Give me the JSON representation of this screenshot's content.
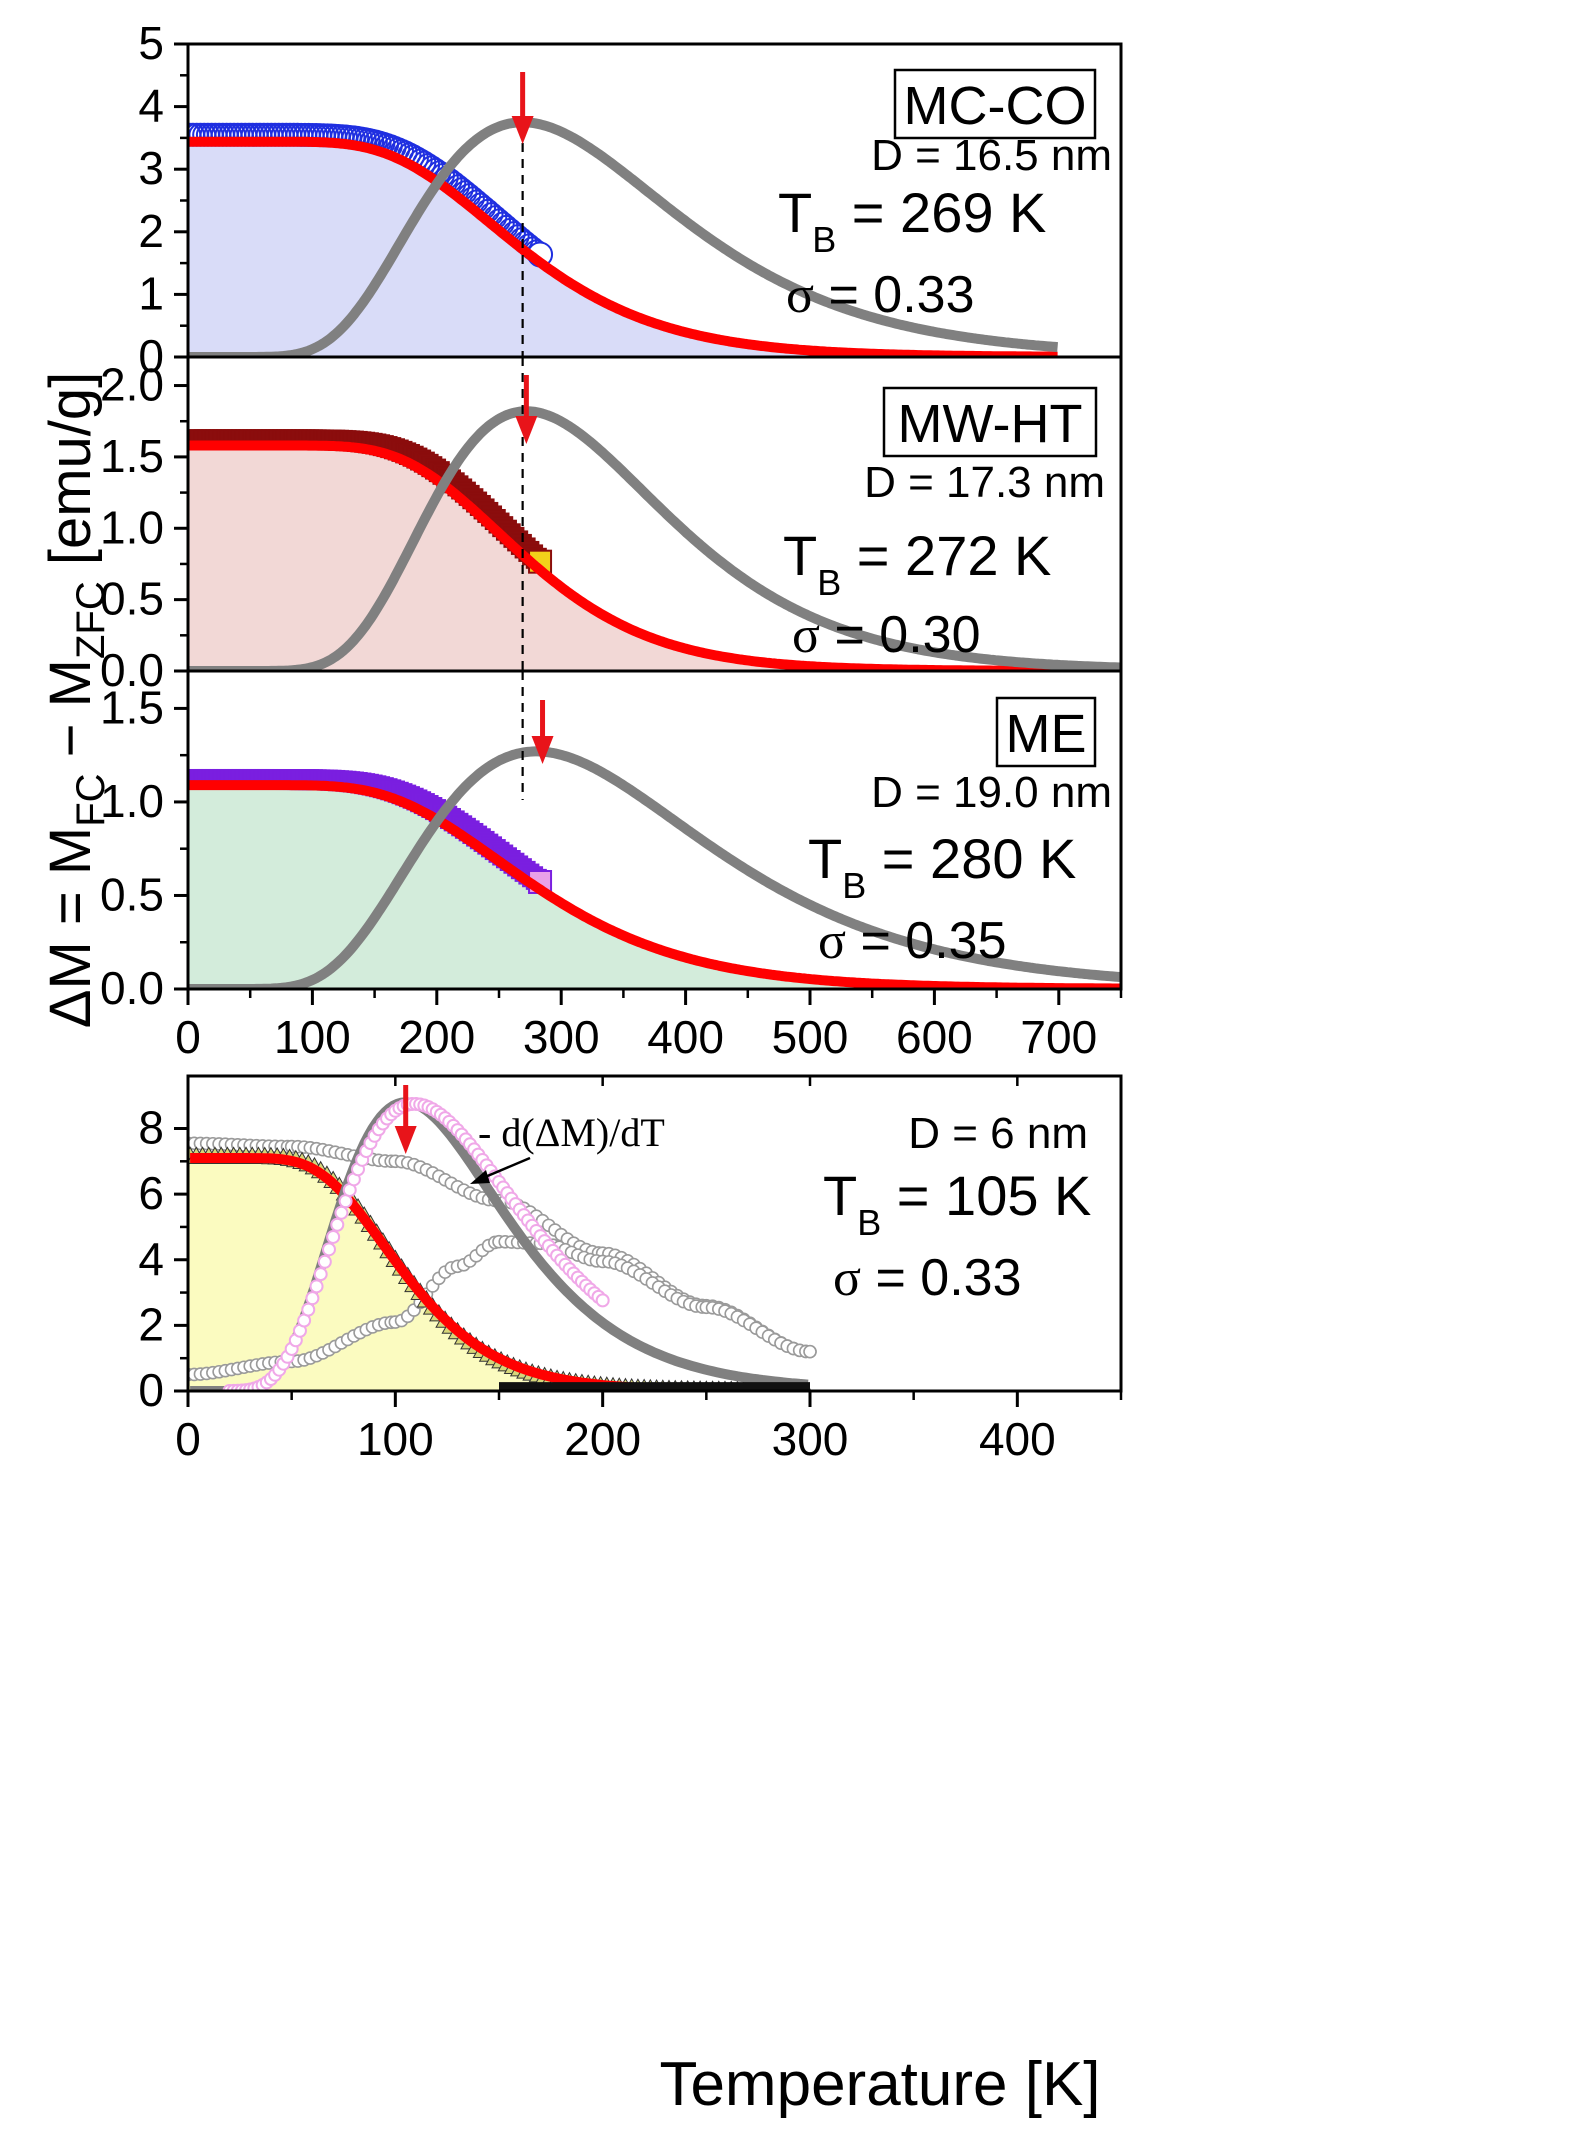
{
  "colors": {
    "fit": "#ff0000",
    "distribution": "#808080",
    "arrow": "#e8141a",
    "panel_mcco_fill": "#d9dcf8",
    "panel_mwht_fill": "#f2d8d6",
    "panel_me_fill": "#d3ecdb",
    "panel_small_fill": "#fbfbc0"
  },
  "figure": {
    "ylabel_main": "ΔM = M",
    "ylabel_fc": "FC",
    "ylabel_minus": " − M",
    "ylabel_zfc": "ZFC",
    "ylabel_units": " [emu/g]",
    "xlabel": "Temperature [K]",
    "t_prefix": "T",
    "t_sub": "B",
    "sigma_symbol": "σ"
  },
  "chart_data": [
    {
      "type": "line",
      "panel": "MC-CO",
      "label": "MC-CO",
      "diameter_text": "D = 16.5 nm",
      "tb_value_text": " = 269 K",
      "sigma_value_text": " = 0.33",
      "TB": 269,
      "sigma": 0.33,
      "xlim": [
        0,
        750
      ],
      "ylim": [
        0,
        5
      ],
      "yticks": [
        0,
        1,
        2,
        3,
        4,
        5
      ],
      "ytick_labels": [
        "0",
        "1",
        "2",
        "3",
        "4",
        "5"
      ],
      "data_series": {
        "name": "ΔM data",
        "color": "#1f2fe0",
        "marker": "circle",
        "M0": 3.55,
        "T_end": 283
      },
      "fit_series": {
        "name": "fit",
        "M0": 3.44,
        "T_end": 700
      },
      "distribution_series": {
        "name": "distribution",
        "peak": 3.75,
        "T_end": 700
      },
      "arrow_T": 269,
      "dashed_T": 269
    },
    {
      "type": "line",
      "panel": "MW-HT",
      "label": "MW-HT",
      "diameter_text": "D = 17.3 nm",
      "tb_value_text": " = 272 K",
      "sigma_value_text": " = 0.30",
      "TB": 272,
      "sigma": 0.3,
      "xlim": [
        0,
        750
      ],
      "ylim": [
        0,
        2.2
      ],
      "yticks": [
        0,
        0.5,
        1.0,
        1.5,
        2.0
      ],
      "ytick_labels": [
        "0.0",
        "0.5",
        "1.0",
        "1.5",
        "2.0"
      ],
      "data_series": {
        "name": "ΔM data",
        "color": "#8b0d0d",
        "marker": "square",
        "M0": 1.62,
        "T_end": 283
      },
      "fit_series": {
        "name": "fit",
        "M0": 1.58,
        "T_end": 750
      },
      "distribution_series": {
        "name": "distribution",
        "peak": 1.82,
        "T_end": 750
      },
      "arrow_T": 272,
      "dashed_T": 269
    },
    {
      "type": "line",
      "panel": "ME",
      "label": "ME",
      "diameter_text": "D = 19.0 nm",
      "tb_value_text": " = 280 K",
      "sigma_value_text": " = 0.35",
      "TB": 280,
      "sigma": 0.35,
      "xlim": [
        0,
        750
      ],
      "ylim": [
        0,
        1.7
      ],
      "yticks": [
        0,
        0.5,
        1.0,
        1.5
      ],
      "ytick_labels": [
        "0.0",
        "0.5",
        "1.0",
        "1.5"
      ],
      "xticks": [
        0,
        100,
        200,
        300,
        400,
        500,
        600,
        700
      ],
      "xtick_labels": [
        "0",
        "100",
        "200",
        "300",
        "400",
        "500",
        "600",
        "700"
      ],
      "data_series": {
        "name": "ΔM data",
        "color": "#7a1fe0",
        "marker": "square",
        "M0": 1.12,
        "T_end": 283
      },
      "fit_series": {
        "name": "fit",
        "M0": 1.09,
        "T_end": 750
      },
      "distribution_series": {
        "name": "distribution",
        "peak": 1.27,
        "T_end": 750
      },
      "arrow_T": 285,
      "dashed_T": 269
    },
    {
      "type": "line",
      "panel": "D = 6 nm",
      "diameter_text": "D = 6 nm",
      "tb_value_text": " = 105 K",
      "sigma_value_text": "  = 0.33",
      "derivative_label": "- d(ΔM)/dT",
      "TB": 105,
      "sigma": 0.33,
      "xlim": [
        0,
        450
      ],
      "ylim": [
        0,
        9.6
      ],
      "yticks": [
        0,
        2,
        4,
        6,
        8
      ],
      "ytick_labels": [
        "0",
        "2",
        "4",
        "6",
        "8"
      ],
      "xticks": [
        0,
        100,
        200,
        300,
        400
      ],
      "xtick_labels": [
        "0",
        "100",
        "200",
        "300",
        "400"
      ],
      "data_series": {
        "name": "ΔM data",
        "color": "#6b6b1a",
        "marker": "triangle",
        "M0": 7.15,
        "T_end": 300
      },
      "fit_series": {
        "name": "fit",
        "M0": 7.1,
        "T_end": 300
      },
      "distribution_series": {
        "name": "- d(ΔM)/dT",
        "peak": 8.8,
        "T_end": 300
      },
      "derivative_points": {
        "name": "- d(ΔM)/dT points",
        "color": "#f0a8e8",
        "peak": 8.75
      },
      "fc_curve": {
        "name": "M_FC",
        "color": "#9a9a9a",
        "values_at": [
          [
            0,
            7.55
          ],
          [
            50,
            7.45
          ],
          [
            100,
            7.0
          ],
          [
            150,
            5.8
          ],
          [
            200,
            4.2
          ],
          [
            250,
            2.6
          ],
          [
            300,
            1.2
          ]
        ]
      },
      "zfc_curve": {
        "name": "M_ZFC",
        "color": "#9a9a9a",
        "values_at": [
          [
            0,
            0.5
          ],
          [
            50,
            0.9
          ],
          [
            100,
            2.1
          ],
          [
            130,
            3.8
          ],
          [
            150,
            4.55
          ],
          [
            170,
            4.5
          ],
          [
            200,
            3.95
          ],
          [
            250,
            2.55
          ],
          [
            300,
            1.2
          ]
        ]
      },
      "arrow_T": 105
    }
  ]
}
